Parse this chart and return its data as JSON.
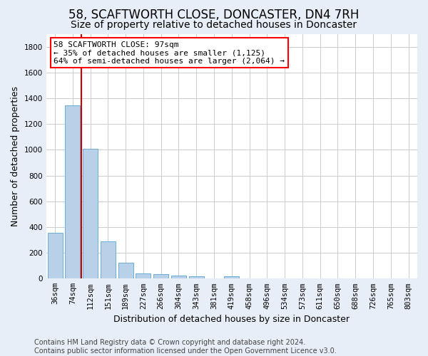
{
  "title": "58, SCAFTWORTH CLOSE, DONCASTER, DN4 7RH",
  "subtitle": "Size of property relative to detached houses in Doncaster",
  "xlabel": "Distribution of detached houses by size in Doncaster",
  "ylabel": "Number of detached properties",
  "categories": [
    "36sqm",
    "74sqm",
    "112sqm",
    "151sqm",
    "189sqm",
    "227sqm",
    "266sqm",
    "304sqm",
    "343sqm",
    "381sqm",
    "419sqm",
    "458sqm",
    "496sqm",
    "534sqm",
    "573sqm",
    "611sqm",
    "650sqm",
    "688sqm",
    "726sqm",
    "765sqm",
    "803sqm"
  ],
  "values": [
    355,
    1345,
    1005,
    290,
    125,
    42,
    35,
    25,
    18,
    0,
    20,
    0,
    0,
    0,
    0,
    0,
    0,
    0,
    0,
    0,
    0
  ],
  "bar_color": "#b8d0e8",
  "bar_edge_color": "#6baed6",
  "vline_color": "#cc0000",
  "vline_x_index": 2,
  "annotation_text": "58 SCAFTWORTH CLOSE: 97sqm\n← 35% of detached houses are smaller (1,125)\n64% of semi-detached houses are larger (2,064) →",
  "annotation_box_facecolor": "white",
  "annotation_box_edgecolor": "red",
  "ylim": [
    0,
    1900
  ],
  "yticks": [
    0,
    200,
    400,
    600,
    800,
    1000,
    1200,
    1400,
    1600,
    1800
  ],
  "footer": "Contains HM Land Registry data © Crown copyright and database right 2024.\nContains public sector information licensed under the Open Government Licence v3.0.",
  "fig_facecolor": "#e8eef7",
  "plot_facecolor": "#ffffff",
  "title_fontsize": 12,
  "subtitle_fontsize": 10,
  "ylabel_fontsize": 9,
  "xlabel_fontsize": 9,
  "tick_fontsize": 7.5,
  "annotation_fontsize": 8,
  "footer_fontsize": 7
}
